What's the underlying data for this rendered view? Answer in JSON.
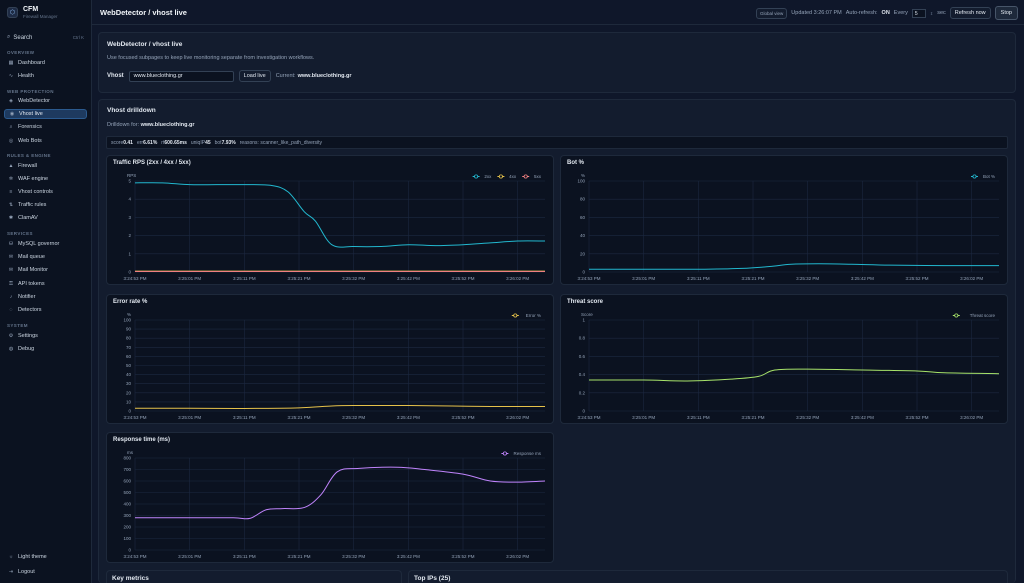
{
  "brand": {
    "name": "CFM",
    "subtitle": "Firewall Manager"
  },
  "search": {
    "label": "Search",
    "shortcut": "Ctrl K"
  },
  "sidebar": {
    "overview": {
      "title": "OVERVIEW",
      "items": [
        {
          "label": "Dashboard",
          "icon": "dashboard-icon"
        },
        {
          "label": "Health",
          "icon": "pulse-icon"
        }
      ]
    },
    "web_protection": {
      "title": "WEB PROTECTION",
      "items": [
        {
          "label": "WebDetector",
          "icon": "shield-icon"
        },
        {
          "label": "Vhost live",
          "icon": "globe-icon"
        },
        {
          "label": "Forensics",
          "icon": "search-icon"
        },
        {
          "label": "Web Bots",
          "icon": "bot-icon"
        }
      ]
    },
    "rules_engine": {
      "title": "RULES & ENGINE",
      "items": [
        {
          "label": "Firewall",
          "icon": "fire-icon"
        },
        {
          "label": "WAF engine",
          "icon": "gear-icon"
        },
        {
          "label": "Vhost controls",
          "icon": "sliders-icon"
        },
        {
          "label": "Traffic rules",
          "icon": "filter-icon"
        },
        {
          "label": "ClamAV",
          "icon": "bug-icon"
        }
      ]
    },
    "services": {
      "title": "SERVICES",
      "items": [
        {
          "label": "MySQL governor",
          "icon": "database-icon"
        },
        {
          "label": "Mail queue",
          "icon": "mail-icon"
        },
        {
          "label": "Mail Monitor",
          "icon": "mail-monitor-icon"
        },
        {
          "label": "API tokens",
          "icon": "key-icon"
        },
        {
          "label": "Notifier",
          "icon": "bell-icon"
        },
        {
          "label": "Detectors",
          "icon": "radar-icon"
        }
      ]
    },
    "system": {
      "title": "SYSTEM",
      "items": [
        {
          "label": "Settings",
          "icon": "settings-icon"
        },
        {
          "label": "Debug",
          "icon": "debug-icon"
        }
      ]
    },
    "light_theme": "Light theme",
    "logout": "Logout"
  },
  "header": {
    "title": "WebDetector / vhost live",
    "global_view": "Global view",
    "updated": "Updated 3:26:07 PM",
    "auto_refresh_label": "Auto-refresh:",
    "auto_refresh_state": "ON",
    "every_label": "Every",
    "every_value": "5",
    "sec_label": "sec",
    "refresh_button": "Refresh now",
    "stop_button": "Stop"
  },
  "intro": {
    "title": "WebDetector / vhost live",
    "description": "Use focused subpages to keep live monitoring separate from investigation workflows.",
    "vhost_label": "Vhost",
    "vhost_value": "www.blueclothing.gr",
    "load_button": "Load live",
    "current_label": "Current:",
    "current_value": "www.blueclothing.gr"
  },
  "drilldown": {
    "title": "Vhost drilldown",
    "drilldown_label": "Drilldown for:",
    "drilldown_value": "www.blueclothing.gr",
    "stats": [
      {
        "label": "score",
        "value": "0.41"
      },
      {
        "label": "err",
        "value": "6.61%"
      },
      {
        "label": "rt",
        "value": "600.65ms"
      },
      {
        "label": "uniqIP",
        "value": "45"
      },
      {
        "label": "bot",
        "value": "7.93%"
      }
    ],
    "reasons": "reasons: scanner_like_path_diversity"
  },
  "bottom": {
    "key_metrics": "Key metrics",
    "top_ips": "Top IPs (25)"
  },
  "colors": {
    "bg": "#0f172a",
    "panel": "#131c2e",
    "accent": "#2b5a8f",
    "cyan": "#22b8cf",
    "yellow": "#e6c24a",
    "red": "#f08080",
    "green": "#a7e36a",
    "purple": "#c084fc"
  },
  "chart_data": [
    {
      "type": "line",
      "title": "Traffic RPS (2xx / 4xx / 5xx)",
      "ylabel": "RPS",
      "ylim": [
        0,
        5
      ],
      "yticks": [
        0,
        1,
        2,
        3,
        4,
        5
      ],
      "x": [
        "3:24:53 PM",
        "3:25:01 PM",
        "3:25:11 PM",
        "3:25:21 PM",
        "3:25:32 PM",
        "3:25:42 PM",
        "3:25:52 PM",
        "3:26:02 PM"
      ],
      "series": [
        {
          "name": "2xx",
          "color": "#22b8cf",
          "points": [
            [
              0,
              4.9
            ],
            [
              0.5,
              4.9
            ],
            [
              1,
              4.8
            ],
            [
              1.5,
              4.8
            ],
            [
              2,
              4.8
            ],
            [
              2.5,
              4.75
            ],
            [
              2.8,
              4.4
            ],
            [
              3.1,
              3.3
            ],
            [
              3.3,
              2.8
            ],
            [
              3.6,
              1.5
            ],
            [
              4,
              1.4
            ],
            [
              4.5,
              1.4
            ],
            [
              5,
              1.5
            ],
            [
              5.5,
              1.45
            ],
            [
              6,
              1.5
            ],
            [
              6.5,
              1.6
            ],
            [
              7,
              1.7
            ],
            [
              7.5,
              1.7
            ]
          ]
        },
        {
          "name": "4xx",
          "color": "#e6c24a",
          "points": [
            [
              0,
              0.05
            ],
            [
              7.5,
              0.05
            ]
          ]
        },
        {
          "name": "5xx",
          "color": "#f08080",
          "points": [
            [
              0,
              0.03
            ],
            [
              7.5,
              0.03
            ]
          ]
        }
      ]
    },
    {
      "type": "line",
      "title": "Bot %",
      "ylabel": "%",
      "ylim": [
        0,
        100
      ],
      "yticks": [
        0,
        20,
        40,
        60,
        80,
        100
      ],
      "x": [
        "3:24:53 PM",
        "3:25:01 PM",
        "3:25:11 PM",
        "3:25:21 PM",
        "3:25:32 PM",
        "3:25:42 PM",
        "3:25:52 PM",
        "3:26:02 PM"
      ],
      "series": [
        {
          "name": "Bot %",
          "color": "#22b8cf",
          "points": [
            [
              0,
              3
            ],
            [
              1,
              3
            ],
            [
              2,
              3
            ],
            [
              2.8,
              4
            ],
            [
              3.3,
              6
            ],
            [
              3.7,
              8.5
            ],
            [
              4.2,
              9
            ],
            [
              4.8,
              8.5
            ],
            [
              5.5,
              7.5
            ],
            [
              6.5,
              7
            ],
            [
              7.5,
              7
            ]
          ]
        }
      ]
    },
    {
      "type": "line",
      "title": "Error rate %",
      "ylabel": "%",
      "ylim": [
        0,
        100
      ],
      "yticks": [
        0,
        10,
        20,
        30,
        40,
        50,
        60,
        70,
        80,
        90,
        100
      ],
      "x": [
        "3:24:53 PM",
        "3:25:01 PM",
        "3:25:11 PM",
        "3:25:21 PM",
        "3:25:32 PM",
        "3:25:42 PM",
        "3:25:52 PM",
        "3:26:02 PM"
      ],
      "series": [
        {
          "name": "Error %",
          "color": "#e6c24a",
          "points": [
            [
              0,
              3
            ],
            [
              1,
              3
            ],
            [
              2,
              2.8
            ],
            [
              3,
              3.5
            ],
            [
              3.6,
              5.5
            ],
            [
              4,
              6
            ],
            [
              5,
              6
            ],
            [
              5.8,
              5.5
            ],
            [
              6.5,
              5
            ],
            [
              7.5,
              5
            ]
          ]
        }
      ]
    },
    {
      "type": "line",
      "title": "Threat score",
      "ylabel": "Score",
      "ylim": [
        0,
        1
      ],
      "yticks": [
        0,
        0.2,
        0.4,
        0.6,
        0.8,
        1
      ],
      "x": [
        "3:24:53 PM",
        "3:25:01 PM",
        "3:25:11 PM",
        "3:25:21 PM",
        "3:25:32 PM",
        "3:25:42 PM",
        "3:25:52 PM",
        "3:26:02 PM"
      ],
      "series": [
        {
          "name": "Threat score",
          "color": "#a7e36a",
          "points": [
            [
              0,
              0.34
            ],
            [
              1,
              0.34
            ],
            [
              1.8,
              0.33
            ],
            [
              2.6,
              0.35
            ],
            [
              3.1,
              0.38
            ],
            [
              3.4,
              0.45
            ],
            [
              4,
              0.46
            ],
            [
              5,
              0.45
            ],
            [
              6,
              0.44
            ],
            [
              6.5,
              0.42
            ],
            [
              7.5,
              0.41
            ]
          ]
        }
      ]
    },
    {
      "type": "line",
      "title": "Response time (ms)",
      "ylabel": "ms",
      "ylim": [
        0,
        800
      ],
      "yticks": [
        0,
        100,
        200,
        300,
        400,
        500,
        600,
        700,
        800
      ],
      "x": [
        "3:24:53 PM",
        "3:25:01 PM",
        "3:25:11 PM",
        "3:25:21 PM",
        "3:25:32 PM",
        "3:25:42 PM",
        "3:25:52 PM",
        "3:26:02 PM"
      ],
      "series": [
        {
          "name": "Response ms",
          "color": "#c084fc",
          "points": [
            [
              0,
              280
            ],
            [
              1,
              280
            ],
            [
              1.8,
              280
            ],
            [
              2.1,
              275
            ],
            [
              2.4,
              350
            ],
            [
              2.7,
              360
            ],
            [
              3.1,
              370
            ],
            [
              3.4,
              480
            ],
            [
              3.7,
              680
            ],
            [
              4.1,
              710
            ],
            [
              4.8,
              720
            ],
            [
              5.3,
              700
            ],
            [
              6,
              660
            ],
            [
              6.5,
              600
            ],
            [
              7,
              590
            ],
            [
              7.5,
              600
            ]
          ]
        }
      ]
    }
  ]
}
